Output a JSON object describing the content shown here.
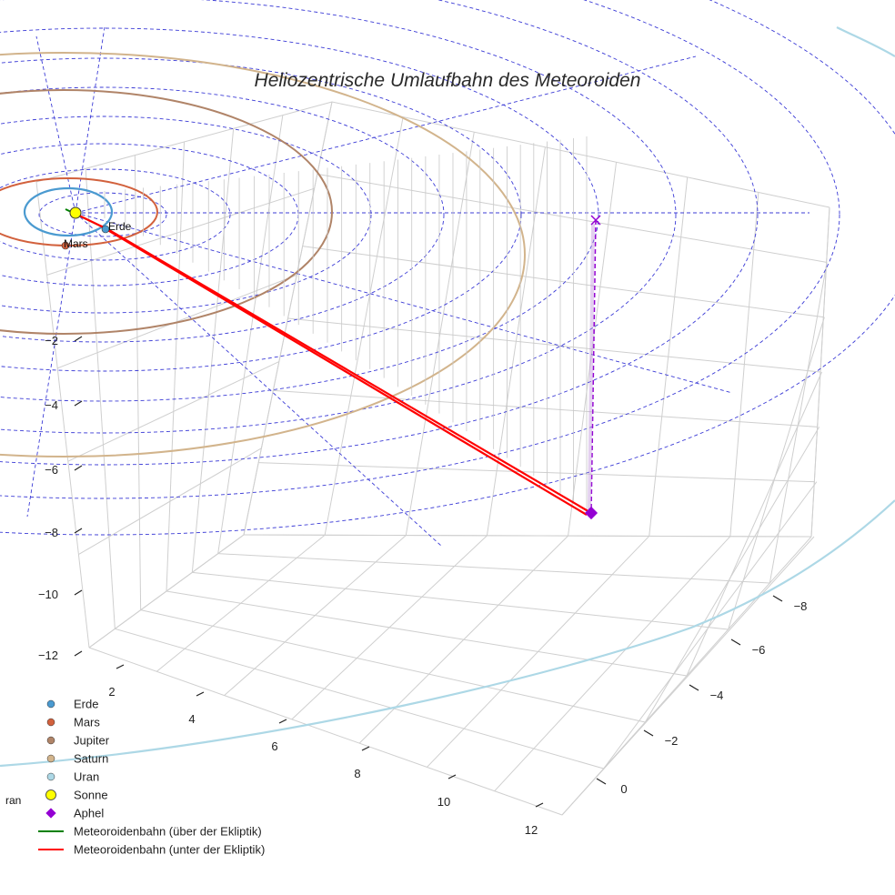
{
  "chart_data": {
    "type": "scatter3d",
    "title": "Heliozentrische Umlaufbahn des Meteoroiden",
    "axes": {
      "x_ticks": [
        "2",
        "4",
        "6",
        "8",
        "10",
        "12"
      ],
      "y_ticks": [
        "0",
        "−2",
        "−4",
        "−6",
        "−8"
      ],
      "z_ticks": [
        "−2",
        "−4",
        "−6",
        "−8",
        "−10",
        "−12"
      ]
    },
    "planet_labels": {
      "earth": "Erde",
      "mars": "Mars",
      "uranus_partial": "ran"
    },
    "colors": {
      "earth": "#4a9ad0",
      "mars": "#d2613d",
      "jupiter": "#b08468",
      "saturn": "#d2b48c",
      "uranus": "#add8e6",
      "sun": "#ffff00",
      "aphel": "#9400d3",
      "orbit_above": "#008000",
      "orbit_below": "#ff0000",
      "grid_dashed": "#3b3bd6"
    },
    "legend": [
      {
        "key": "earth",
        "label": "Erde",
        "marker": "dot"
      },
      {
        "key": "mars",
        "label": "Mars",
        "marker": "dot"
      },
      {
        "key": "jupiter",
        "label": "Jupiter",
        "marker": "dot"
      },
      {
        "key": "saturn",
        "label": "Saturn",
        "marker": "dot"
      },
      {
        "key": "uranus",
        "label": "Uran",
        "marker": "dot"
      },
      {
        "key": "sun",
        "label": "Sonne",
        "marker": "bigdot"
      },
      {
        "key": "aphel",
        "label": "Aphel",
        "marker": "diamond"
      },
      {
        "key": "orbit_above",
        "label": "Meteoroidenbahn (über der Ekliptik)",
        "marker": "line"
      },
      {
        "key": "orbit_below",
        "label": "Meteoroidenbahn (unter der Ekliptik)",
        "marker": "line"
      }
    ]
  }
}
